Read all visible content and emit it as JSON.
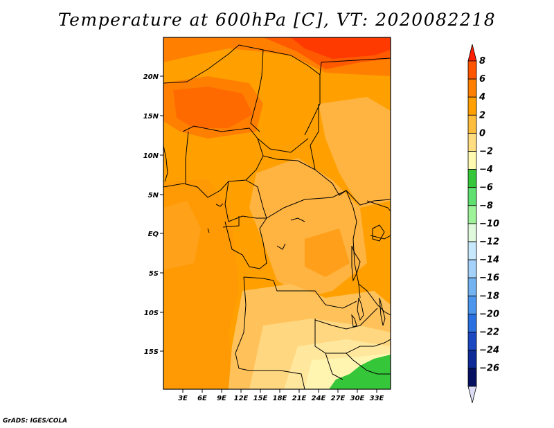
{
  "title": "Temperature at 600hPa [C], VT: 2020082218",
  "credit": "GrADS: IGES/COLA",
  "map": {
    "variable": "Temperature",
    "level": "600hPa",
    "units": "C",
    "valid_time": "2020082218",
    "lat_ticks": [
      "20N",
      "15N",
      "10N",
      "5N",
      "EQ",
      "5S",
      "10S",
      "15S"
    ],
    "lon_ticks": [
      "3E",
      "6E",
      "9E",
      "12E",
      "15E",
      "18E",
      "21E",
      "24E",
      "27E",
      "30E",
      "33E"
    ]
  },
  "colorbar": {
    "levels": [
      "8",
      "6",
      "4",
      "2",
      "0",
      "−2",
      "−4",
      "−6",
      "−8",
      "−10",
      "−12",
      "−14",
      "−16",
      "−18",
      "−20",
      "−22",
      "−24",
      "−26"
    ],
    "colors": [
      "#ff1e00",
      "#ff5500",
      "#ff7f00",
      "#ffa000",
      "#ffbd3d",
      "#ffdd80",
      "#fffab0",
      "#36c63a",
      "#60e070",
      "#9ef39a",
      "#dff9dd",
      "#c8e8fb",
      "#a4d2fa",
      "#74b3f2",
      "#4c96ed",
      "#2b70e0",
      "#1948c0",
      "#0d2a96",
      "#061060",
      "#dcdcf5"
    ]
  }
}
